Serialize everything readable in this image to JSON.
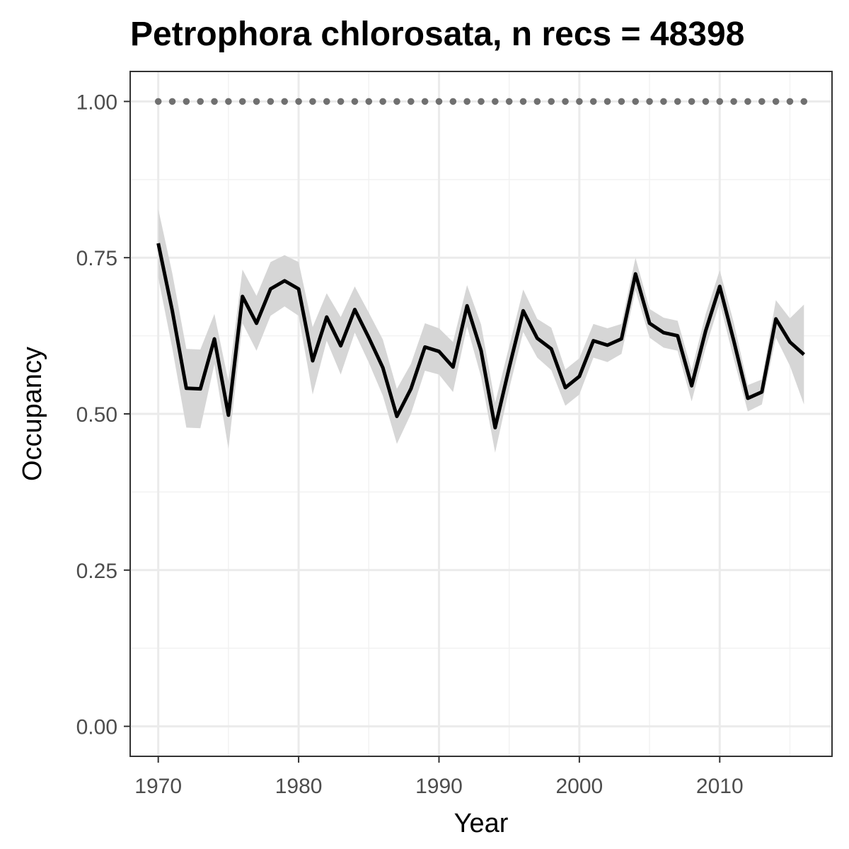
{
  "chart_data": {
    "type": "line",
    "title": "Petrophora chlorosata, n recs = 48398",
    "xlabel": "Year",
    "ylabel": "Occupancy",
    "xlim": [
      1968,
      2018
    ],
    "ylim": [
      -0.048,
      1.048
    ],
    "x_ticks": [
      1970,
      1980,
      1990,
      2000,
      2010
    ],
    "x_tick_labels": [
      "1970",
      "1980",
      "1990",
      "2000",
      "2010"
    ],
    "y_ticks": [
      0,
      0.25,
      0.5,
      0.75,
      1
    ],
    "y_tick_labels": [
      "0.00",
      "0.25",
      "0.50",
      "0.75",
      "1.00"
    ],
    "grid": true,
    "legend": "none",
    "series": [
      {
        "role": "occupancy",
        "color": "#000000",
        "x": [
          1970,
          1971,
          1972,
          1973,
          1974,
          1975,
          1976,
          1977,
          1978,
          1979,
          1980,
          1981,
          1982,
          1983,
          1984,
          1985,
          1986,
          1987,
          1988,
          1989,
          1990,
          1991,
          1992,
          1993,
          1994,
          1995,
          1996,
          1997,
          1998,
          1999,
          2000,
          2001,
          2002,
          2003,
          2004,
          2005,
          2006,
          2007,
          2008,
          2009,
          2010,
          2011,
          2012,
          2013,
          2014,
          2015,
          2016
        ],
        "y": [
          0.773,
          0.665,
          0.541,
          0.54,
          0.62,
          0.498,
          0.688,
          0.645,
          0.7,
          0.713,
          0.7,
          0.585,
          0.655,
          0.609,
          0.667,
          0.622,
          0.574,
          0.496,
          0.54,
          0.607,
          0.6,
          0.575,
          0.673,
          0.601,
          0.478,
          0.574,
          0.665,
          0.621,
          0.604,
          0.542,
          0.56,
          0.617,
          0.61,
          0.62,
          0.724,
          0.645,
          0.63,
          0.625,
          0.545,
          0.633,
          0.704,
          0.617,
          0.525,
          0.535,
          0.652,
          0.615,
          0.595
        ],
        "lower": [
          0.718,
          0.605,
          0.478,
          0.477,
          0.58,
          0.444,
          0.645,
          0.601,
          0.657,
          0.672,
          0.657,
          0.531,
          0.617,
          0.563,
          0.63,
          0.582,
          0.529,
          0.452,
          0.5,
          0.569,
          0.563,
          0.535,
          0.64,
          0.559,
          0.438,
          0.54,
          0.631,
          0.59,
          0.57,
          0.513,
          0.531,
          0.59,
          0.583,
          0.596,
          0.698,
          0.622,
          0.606,
          0.601,
          0.52,
          0.606,
          0.678,
          0.588,
          0.504,
          0.515,
          0.622,
          0.577,
          0.515
        ],
        "upper": [
          0.828,
          0.725,
          0.604,
          0.603,
          0.66,
          0.552,
          0.731,
          0.689,
          0.743,
          0.754,
          0.743,
          0.639,
          0.693,
          0.655,
          0.704,
          0.662,
          0.619,
          0.54,
          0.58,
          0.645,
          0.637,
          0.615,
          0.706,
          0.643,
          0.518,
          0.608,
          0.699,
          0.652,
          0.638,
          0.571,
          0.589,
          0.644,
          0.637,
          0.644,
          0.75,
          0.668,
          0.654,
          0.649,
          0.57,
          0.66,
          0.73,
          0.646,
          0.546,
          0.555,
          0.682,
          0.653,
          0.675
        ]
      },
      {
        "role": "reference",
        "color": "#707070",
        "x": [
          1970,
          1971,
          1972,
          1973,
          1974,
          1975,
          1976,
          1977,
          1978,
          1979,
          1980,
          1981,
          1982,
          1983,
          1984,
          1985,
          1986,
          1987,
          1988,
          1989,
          1990,
          1991,
          1992,
          1993,
          1994,
          1995,
          1996,
          1997,
          1998,
          1999,
          2000,
          2001,
          2002,
          2003,
          2004,
          2005,
          2006,
          2007,
          2008,
          2009,
          2010,
          2011,
          2012,
          2013,
          2014,
          2015,
          2016
        ],
        "y": [
          1,
          1,
          1,
          1,
          1,
          1,
          1,
          1,
          1,
          1,
          1,
          1,
          1,
          1,
          1,
          1,
          1,
          1,
          1,
          1,
          1,
          1,
          1,
          1,
          1,
          1,
          1,
          1,
          1,
          1,
          1,
          1,
          1,
          1,
          1,
          1,
          1,
          1,
          1,
          1,
          1,
          1,
          1,
          1,
          1,
          1,
          1
        ]
      }
    ],
    "ribbon_color": "#d6d6d6"
  }
}
